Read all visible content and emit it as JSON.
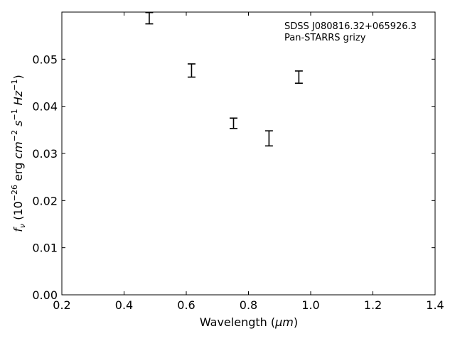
{
  "chart_data": {
    "type": "scatter",
    "title": "",
    "xlabel": {
      "pre": "Wavelength (",
      "italic": "μm",
      "post": ")"
    },
    "ylabel": {
      "main": "f",
      "sub": "ν",
      "unit_pre": " (10",
      "unit_exp": "−26",
      "unit_mid": " erg ",
      "cm": "cm",
      "cm_exp": "−2",
      "s": " s",
      "s_exp": "−1",
      "hz": " Hz",
      "hz_exp": "−1",
      "close": ")"
    },
    "xlim": [
      0.2,
      1.4
    ],
    "ylim": [
      0.0,
      0.06
    ],
    "xticks": [
      "0.2",
      "0.4",
      "0.6",
      "0.8",
      "1.0",
      "1.2",
      "1.4"
    ],
    "yticks": [
      "0.00",
      "0.01",
      "0.02",
      "0.03",
      "0.04",
      "0.05"
    ],
    "annotations": [
      "SDSS J080816.32+065926.3",
      "Pan-STARRS grizy"
    ],
    "series": [
      {
        "marker": "errorbar",
        "points": [
          {
            "x": 0.481,
            "y": 0.0587,
            "yerr": 0.0012
          },
          {
            "x": 0.617,
            "y": 0.0476,
            "yerr": 0.0014
          },
          {
            "x": 0.752,
            "y": 0.0364,
            "yerr": 0.0011
          },
          {
            "x": 0.866,
            "y": 0.0332,
            "yerr": 0.0016
          },
          {
            "x": 0.962,
            "y": 0.0462,
            "yerr": 0.0013
          }
        ]
      }
    ],
    "grid": false,
    "legend": "none"
  }
}
